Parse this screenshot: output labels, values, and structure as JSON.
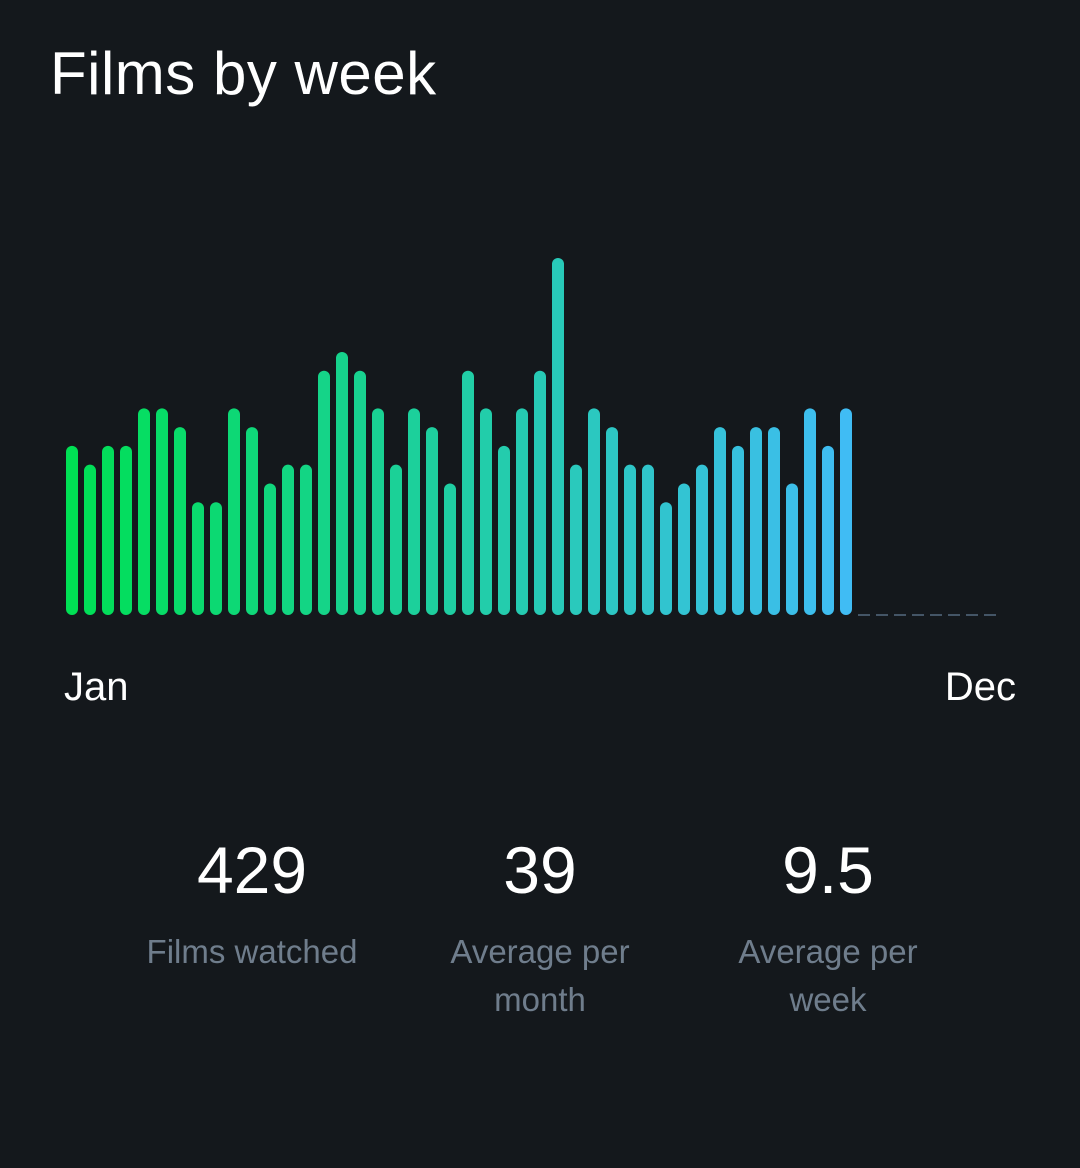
{
  "title": "Films by week",
  "chart_data": {
    "type": "bar",
    "title": "Films by week",
    "xlabel": "",
    "ylabel": "",
    "x_start_label": "Jan",
    "x_end_label": "Dec",
    "values": [
      9,
      8,
      9,
      9,
      11,
      11,
      10,
      6,
      6,
      11,
      10,
      7,
      8,
      8,
      13,
      14,
      13,
      11,
      8,
      11,
      10,
      7,
      13,
      11,
      9,
      11,
      13,
      19,
      8,
      11,
      10,
      8,
      8,
      6,
      7,
      8,
      10,
      9,
      10,
      10,
      7,
      11,
      9,
      11
    ],
    "total_weeks": 52,
    "ylim": [
      0,
      19
    ],
    "grid": false,
    "legend": "none",
    "colors": {
      "start": "#00e054",
      "end": "#40bcf4",
      "empty": "#445566"
    }
  },
  "stats": [
    {
      "value": "429",
      "label": "Films watched"
    },
    {
      "value": "39",
      "label": "Average per month"
    },
    {
      "value": "9.5",
      "label": "Average per week"
    }
  ]
}
